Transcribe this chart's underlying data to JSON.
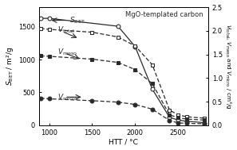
{
  "title": "MgO-templated carbon",
  "xlabel": "HTT / °C",
  "ylabel_left": "$S_\\mathrm{BET}$ / m²/g",
  "ylabel_right": "$V_\\mathrm{total}$, $V_\\mathrm{meso}$ and $V_\\mathrm{micro}$ / cm³/g",
  "S_BET_x": [
    900,
    1000,
    1800,
    2000,
    2200,
    2400,
    2500,
    2600,
    2800
  ],
  "S_BET_y": [
    1630,
    1630,
    1510,
    1200,
    550,
    120,
    80,
    60,
    40
  ],
  "V_total_x": [
    900,
    1000,
    1500,
    1800,
    2000,
    2200,
    2400,
    2500,
    2600,
    2800
  ],
  "V_total_y": [
    2.05,
    2.03,
    1.97,
    1.87,
    1.68,
    1.28,
    0.32,
    0.22,
    0.18,
    0.15
  ],
  "V_meso_x": [
    900,
    1000,
    1500,
    1800,
    2000,
    2200,
    2400,
    2500,
    2600,
    2800
  ],
  "V_meso_y": [
    1.47,
    1.46,
    1.4,
    1.33,
    1.18,
    0.88,
    0.22,
    0.16,
    0.13,
    0.11
  ],
  "V_micro_x": [
    900,
    1000,
    1500,
    1800,
    2000,
    2200,
    2400,
    2500,
    2600,
    2800
  ],
  "V_micro_y": [
    0.57,
    0.56,
    0.52,
    0.49,
    0.44,
    0.34,
    0.1,
    0.05,
    0.04,
    0.03
  ],
  "xlim": [
    880,
    2850
  ],
  "ylim_left": [
    0,
    1800
  ],
  "ylim_right": [
    0.0,
    2.5
  ],
  "xticks": [
    1000,
    1500,
    2000,
    2500
  ],
  "yticks_left": [
    0,
    500,
    1000,
    1500
  ],
  "yticks_right": [
    0.0,
    0.5,
    1.0,
    1.5,
    2.0,
    2.5
  ],
  "line_color": "#2a2a2a",
  "annot_fontsize": 6.5,
  "label_fontsize": 6.5,
  "tick_fontsize": 6.0
}
